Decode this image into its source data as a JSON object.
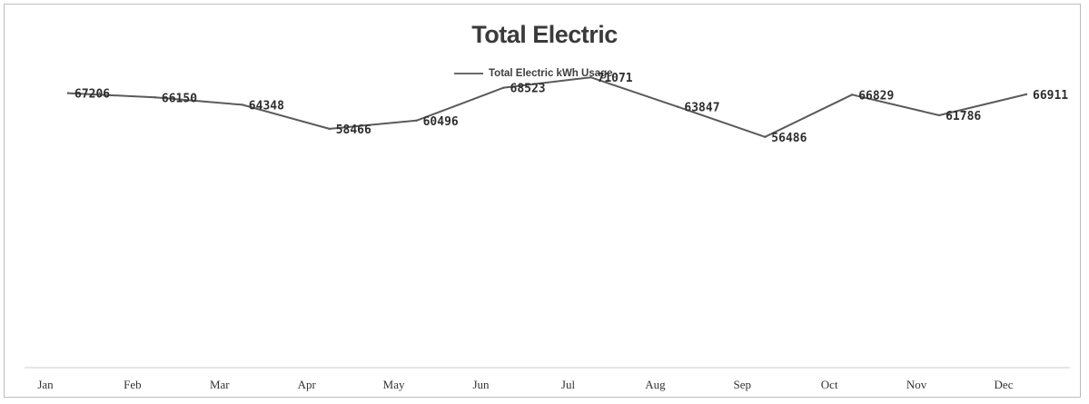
{
  "chart_data": {
    "type": "line",
    "title": "Total Electric",
    "xlabel": "",
    "ylabel": "",
    "categories": [
      "Jan",
      "Feb",
      "Mar",
      "Apr",
      "May",
      "Jun",
      "Jul",
      "Aug",
      "Sep",
      "Oct",
      "Nov",
      "Dec"
    ],
    "series": [
      {
        "name": "Total Electric kWh Usage",
        "values": [
          67206,
          66150,
          64348,
          58466,
          60496,
          68523,
          71071,
          63847,
          56486,
          66829,
          61786,
          66911
        ],
        "data_labels": [
          "67206",
          "66150",
          "64348",
          "58466",
          "60496",
          "68523",
          "71071",
          "63847",
          "56486",
          "66829",
          "61786",
          "66911"
        ]
      }
    ],
    "ylim": [
      0,
      90000
    ],
    "y_axis_visible": false,
    "grid": false,
    "legend_position": "top-center",
    "line_color": "#5a5a5a"
  }
}
